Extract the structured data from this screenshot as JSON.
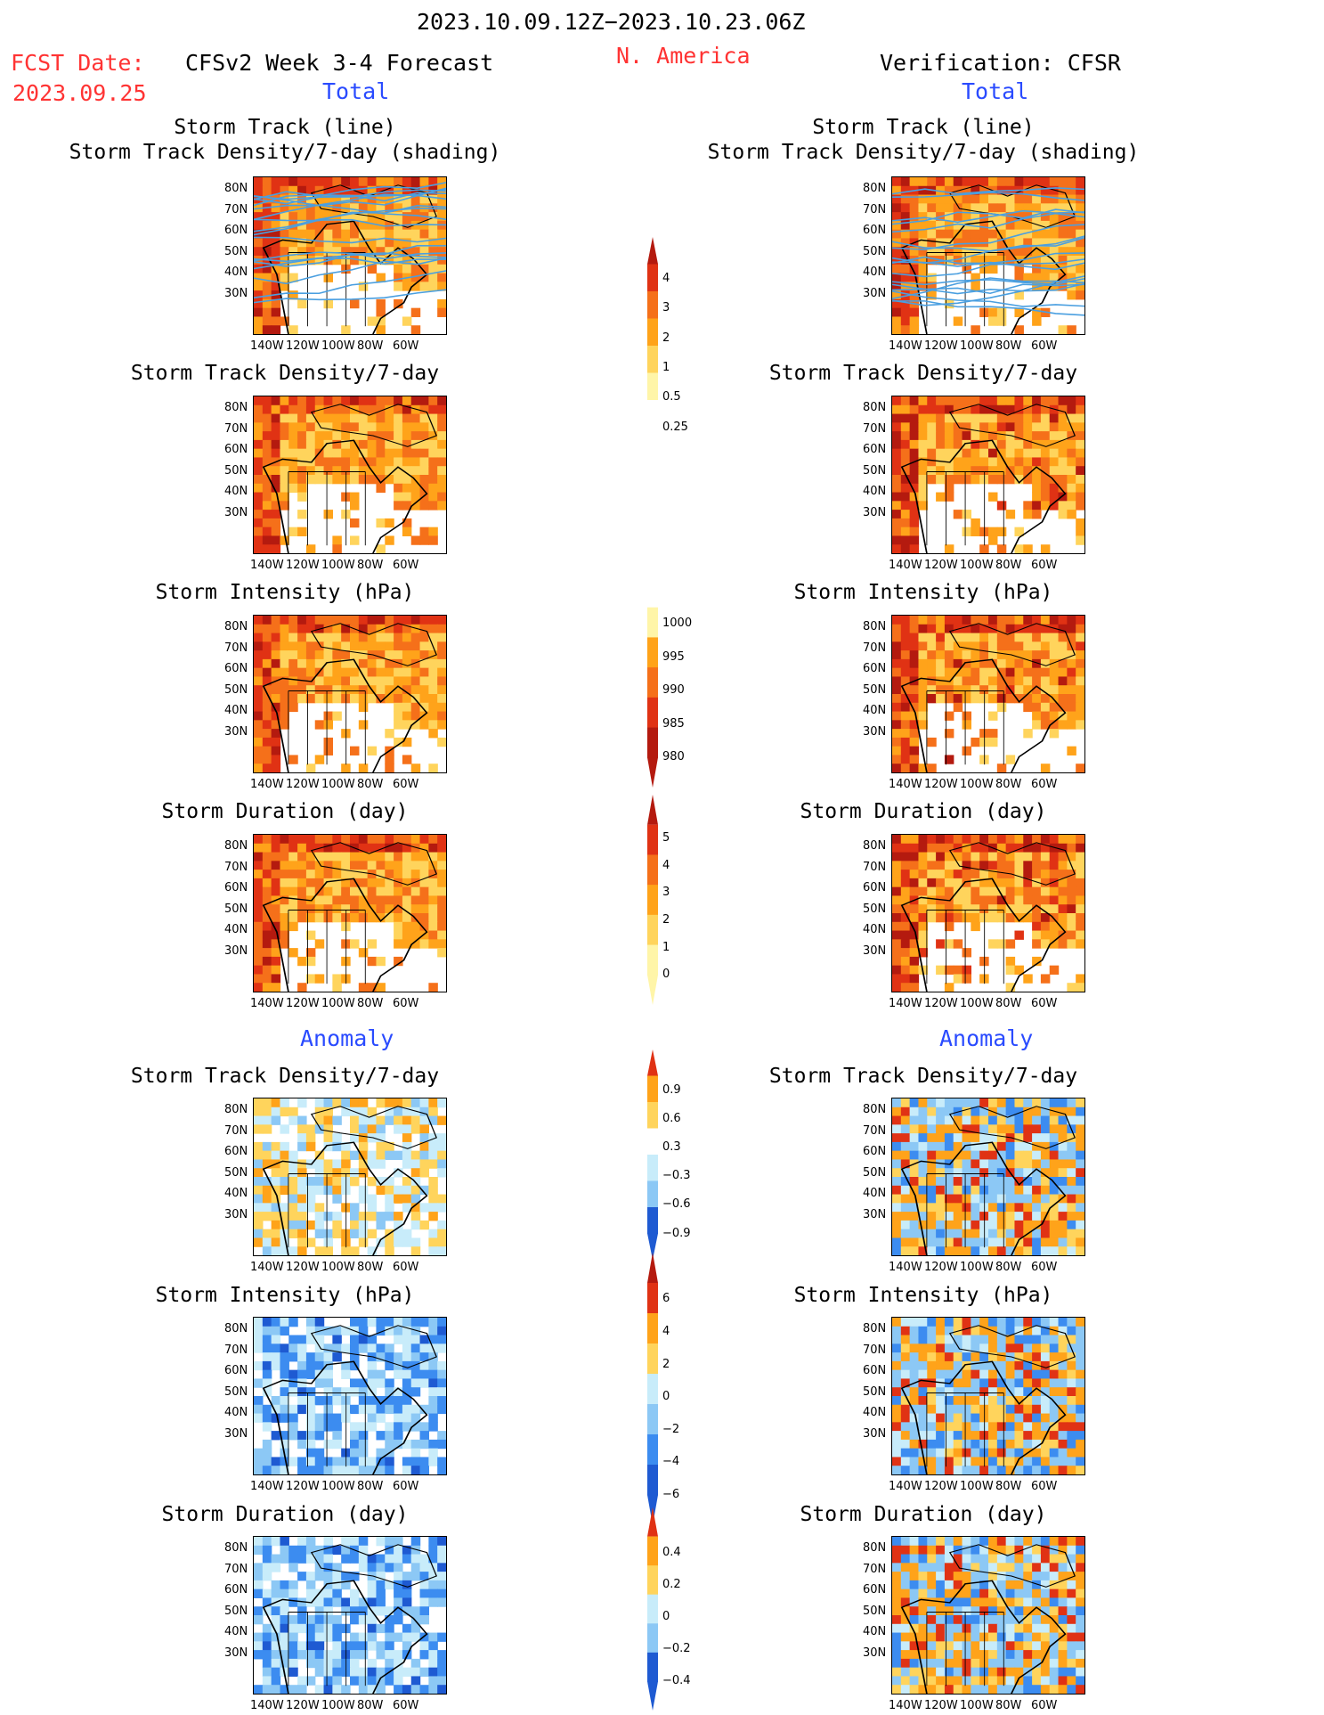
{
  "header": {
    "date_range": "2023.10.09.12Z−2023.10.23.06Z",
    "fcst_label": "FCST Date:",
    "fcst_date": "2023.09.25",
    "model_title": "CFSv2 Week 3-4 Forecast",
    "region": "N. America",
    "verification": "Verification: CFSR"
  },
  "sections": {
    "total": "Total",
    "anomaly": "Anomaly"
  },
  "panel_titles": {
    "track_line": "Storm Track (line)",
    "track_shading": "Storm Track Density/7-day (shading)",
    "density": "Storm Track Density/7-day",
    "intensity": "Storm Intensity (hPa)",
    "duration": "Storm Duration (day)"
  },
  "axes": {
    "lat_ticks": [
      "80N",
      "70N",
      "60N",
      "50N",
      "40N",
      "30N"
    ],
    "lon_ticks": [
      "140W",
      "120W",
      "100W",
      "80W",
      "60W"
    ]
  },
  "colorbars": [
    {
      "id": "density_total",
      "labels": [
        "4",
        "3",
        "2",
        "1",
        "0.5",
        "0.25"
      ]
    },
    {
      "id": "intensity_total",
      "labels": [
        "1000",
        "995",
        "990",
        "985",
        "980"
      ]
    },
    {
      "id": "duration_total",
      "labels": [
        "5",
        "4",
        "3",
        "2",
        "1",
        "0"
      ]
    },
    {
      "id": "density_anom",
      "labels": [
        "0.9",
        "0.6",
        "0.3",
        "−0.3",
        "−0.6",
        "−0.9"
      ]
    },
    {
      "id": "intensity_anom",
      "labels": [
        "6",
        "4",
        "2",
        "0",
        "−2",
        "−4",
        "−6"
      ]
    },
    {
      "id": "duration_anom",
      "labels": [
        "0.4",
        "0.2",
        "0",
        "−0.2",
        "−0.4"
      ]
    }
  ],
  "palette": {
    "yellow_light": "#fff5a8",
    "yellow": "#ffd45c",
    "orange": "#ffa31a",
    "orange_dark": "#f5701a",
    "red": "#e03214",
    "red_dark": "#b41a0f",
    "blue_light": "#c8ecfa",
    "blue_mid": "#8cc8f5",
    "blue": "#3c8cf0",
    "blue_dark": "#1e5ad2",
    "track_line": "#4a9fe0",
    "label_red": "#ff3333",
    "label_blue": "#2a4bff"
  }
}
